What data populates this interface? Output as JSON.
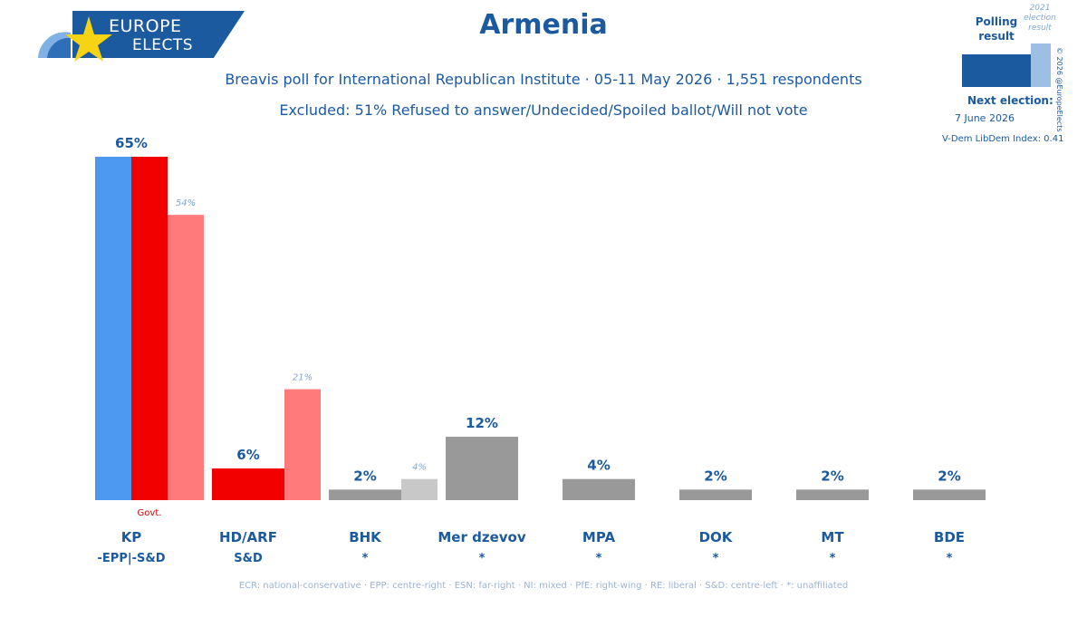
{
  "header": {
    "brand_line1": "EUROPE",
    "brand_line2": "ELECTS",
    "title": "Armenia",
    "subtitle": "Breavis poll for International Republican Institute · 05-11 May 2026 · 1,551 respondents",
    "excluded": "Excluded: 51% Refused to answer/Undecided/Spoiled ballot/Will not vote"
  },
  "legend_box": {
    "polling_result": "Polling result",
    "prev_result": "2021 election result",
    "copyright": "© 2026 @EuropeElects",
    "next_election_label": "Next election:",
    "next_election_date": "7 June 2026",
    "vdem": "V-Dem LibDem Index: 0.41"
  },
  "footer": "ECR: national-conservative · EPP: centre-right · ESN: far-right · NI: mixed · PfE: right-wing · RE: liberal · S&D: centre-left · *: unaffiliated",
  "chart_data": {
    "type": "bar",
    "categories": [
      "KP",
      "HD/ARF",
      "BHK",
      "Mer dzevov",
      "MPA",
      "DOK",
      "MT",
      "BDE"
    ],
    "groups": [
      "-EPP|-S&D",
      "S&D",
      "*",
      "*",
      "*",
      "*",
      "*",
      "*"
    ],
    "series": [
      {
        "name": "Polling result",
        "values": [
          65,
          6,
          2,
          12,
          4,
          2,
          2,
          2
        ]
      },
      {
        "name": "2021 election result",
        "values": [
          54,
          21,
          4,
          null,
          null,
          null,
          null,
          null
        ]
      }
    ],
    "value_labels": [
      "65%",
      "6%",
      "2%",
      "12%",
      "4%",
      "2%",
      "2%",
      "2%"
    ],
    "prev_labels": [
      "54%",
      "21%",
      "4%",
      "",
      "",
      "",
      "",
      ""
    ],
    "govt_note": "Govt.",
    "govt_index": 0,
    "colors": {
      "kp_stripe": "#4d98f0",
      "kp_main": "#f20000",
      "kp_prev": "#ff7a7a",
      "hd_main": "#f20000",
      "hd_prev": "#ff7a7a",
      "grey": "#999999",
      "grey_prev": "#c8c8c8"
    },
    "ylim": [
      0,
      65
    ]
  }
}
